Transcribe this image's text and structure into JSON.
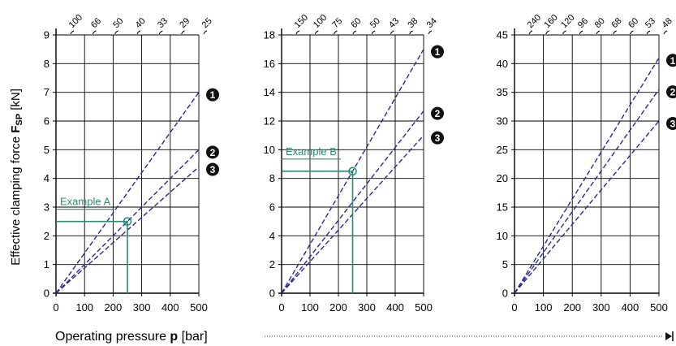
{
  "figure": {
    "ylabel_prefix": "Effective clamping force ",
    "ylabel_symbol": "F",
    "ylabel_subscript": "SP",
    "ylabel_unit": " [kN]",
    "xlabel_prefix": "Operating pressure ",
    "xlabel_symbol": "p",
    "xlabel_unit": " [bar]"
  },
  "colors": {
    "series": "#2b2b8c",
    "example": "#2e8b72",
    "axis": "#000000",
    "grid": "#000000"
  },
  "chart_data": [
    {
      "type": "line",
      "xlim": [
        0,
        500
      ],
      "ylim": [
        0,
        9
      ],
      "xticks": [
        "0",
        "100",
        "200",
        "300",
        "400",
        "500"
      ],
      "yticks": [
        "0",
        "1",
        "2",
        "3",
        "4",
        "5",
        "6",
        "7",
        "8",
        "9"
      ],
      "top_ticks": [
        "100",
        "66",
        "50",
        "40",
        "33",
        "29",
        "25"
      ],
      "grid": true,
      "series": [
        {
          "marker": "1",
          "x": [
            0,
            500
          ],
          "y": [
            0,
            7.0
          ]
        },
        {
          "marker": "2",
          "x": [
            0,
            500
          ],
          "y": [
            0,
            5.0
          ]
        },
        {
          "marker": "3",
          "x": [
            0,
            500
          ],
          "y": [
            0,
            4.4
          ]
        }
      ],
      "example": {
        "label": "Example A",
        "x": 250,
        "y": 2.5
      }
    },
    {
      "type": "line",
      "xlim": [
        0,
        500
      ],
      "ylim": [
        0,
        18
      ],
      "xticks": [
        "0",
        "100",
        "200",
        "300",
        "400",
        "500"
      ],
      "yticks": [
        "0",
        "2",
        "4",
        "6",
        "8",
        "10",
        "12",
        "14",
        "16",
        "18"
      ],
      "top_ticks": [
        "150",
        "100",
        "75",
        "60",
        "50",
        "43",
        "38",
        "34"
      ],
      "grid": true,
      "series": [
        {
          "marker": "1",
          "x": [
            0,
            500
          ],
          "y": [
            0,
            17.0
          ]
        },
        {
          "marker": "2",
          "x": [
            0,
            500
          ],
          "y": [
            0,
            12.7
          ]
        },
        {
          "marker": "3",
          "x": [
            0,
            500
          ],
          "y": [
            0,
            11.0
          ]
        }
      ],
      "example": {
        "label": "Example B",
        "x": 250,
        "y": 8.5
      }
    },
    {
      "type": "line",
      "xlim": [
        0,
        500
      ],
      "ylim": [
        0,
        45
      ],
      "xticks": [
        "0",
        "100",
        "200",
        "300",
        "400",
        "500"
      ],
      "yticks": [
        "0",
        "5",
        "10",
        "15",
        "20",
        "25",
        "30",
        "35",
        "40",
        "45"
      ],
      "top_ticks": [
        "240",
        "160",
        "120",
        "96",
        "80",
        "68",
        "60",
        "53",
        "48"
      ],
      "grid": true,
      "series": [
        {
          "marker": "1",
          "x": [
            0,
            500
          ],
          "y": [
            0,
            41.0
          ]
        },
        {
          "marker": "2",
          "x": [
            0,
            500
          ],
          "y": [
            0,
            35.5
          ]
        },
        {
          "marker": "3",
          "x": [
            0,
            500
          ],
          "y": [
            0,
            30.0
          ]
        }
      ]
    }
  ]
}
